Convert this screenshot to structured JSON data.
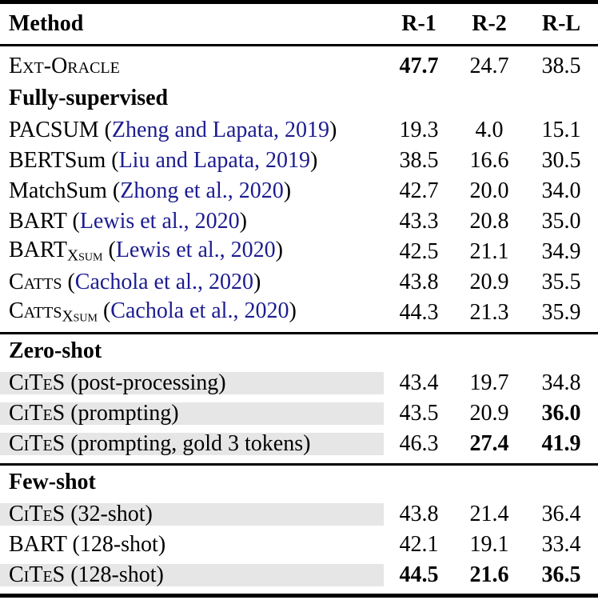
{
  "colors": {
    "citation_blue": "#1c1c90",
    "highlight_gray": "#e6e6e6",
    "rule_black": "#000000",
    "background": "#ffffff"
  },
  "table": {
    "header": {
      "method": "Method",
      "cols": [
        "R-1",
        "R-2",
        "R-L"
      ]
    },
    "blocks": [
      {
        "rows": [
          {
            "type": "data",
            "hl": false,
            "method": [
              {
                "t": "Ext-Oracle",
                "k": "sc"
              }
            ],
            "values": [
              "47.7",
              "24.7",
              "38.5"
            ],
            "bold": [
              true,
              false,
              false
            ]
          },
          {
            "type": "subheader",
            "title": "Fully-supervised"
          },
          {
            "type": "data",
            "hl": false,
            "method": [
              {
                "t": "PACSUM (",
                "k": "plain"
              },
              {
                "t": "Zheng and Lapata, 2019",
                "k": "cite"
              },
              {
                "t": ")",
                "k": "plain"
              }
            ],
            "values": [
              "19.3",
              "4.0",
              "15.1"
            ],
            "bold": [
              false,
              false,
              false
            ]
          },
          {
            "type": "data",
            "hl": false,
            "method": [
              {
                "t": "BERTSum (",
                "k": "plain"
              },
              {
                "t": "Liu and Lapata, 2019",
                "k": "cite"
              },
              {
                "t": ")",
                "k": "plain"
              }
            ],
            "values": [
              "38.5",
              "16.6",
              "30.5"
            ],
            "bold": [
              false,
              false,
              false
            ]
          },
          {
            "type": "data",
            "hl": false,
            "method": [
              {
                "t": "MatchSum (",
                "k": "plain"
              },
              {
                "t": "Zhong et al., 2020",
                "k": "cite"
              },
              {
                "t": ")",
                "k": "plain"
              }
            ],
            "values": [
              "42.7",
              "20.0",
              "34.0"
            ],
            "bold": [
              false,
              false,
              false
            ]
          },
          {
            "type": "data",
            "hl": false,
            "method": [
              {
                "t": "BART (",
                "k": "plain"
              },
              {
                "t": "Lewis et al., 2020",
                "k": "cite"
              },
              {
                "t": ")",
                "k": "plain"
              }
            ],
            "values": [
              "43.3",
              "20.8",
              "35.0"
            ],
            "bold": [
              false,
              false,
              false
            ]
          },
          {
            "type": "data",
            "hl": false,
            "method": [
              {
                "t": "BART",
                "k": "plain"
              },
              {
                "t": "Xsum",
                "k": "subsc"
              },
              {
                "t": " (",
                "k": "plain"
              },
              {
                "t": "Lewis et al., 2020",
                "k": "cite"
              },
              {
                "t": ")",
                "k": "plain"
              }
            ],
            "values": [
              "42.5",
              "21.1",
              "34.9"
            ],
            "bold": [
              false,
              false,
              false
            ]
          },
          {
            "type": "data",
            "hl": false,
            "method": [
              {
                "t": "Catts",
                "k": "sc"
              },
              {
                "t": " (",
                "k": "plain"
              },
              {
                "t": "Cachola et al., 2020",
                "k": "cite"
              },
              {
                "t": ")",
                "k": "plain"
              }
            ],
            "values": [
              "43.8",
              "20.9",
              "35.5"
            ],
            "bold": [
              false,
              false,
              false
            ]
          },
          {
            "type": "data",
            "hl": false,
            "method": [
              {
                "t": "Catts",
                "k": "sc"
              },
              {
                "t": "Xsum",
                "k": "subsc"
              },
              {
                "t": " (",
                "k": "plain"
              },
              {
                "t": "Cachola et al., 2020",
                "k": "cite"
              },
              {
                "t": ")",
                "k": "plain"
              }
            ],
            "values": [
              "44.3",
              "21.3",
              "35.9"
            ],
            "bold": [
              false,
              false,
              false
            ]
          }
        ]
      },
      {
        "rows": [
          {
            "type": "subheader",
            "title": "Zero-shot"
          },
          {
            "type": "data",
            "hl": true,
            "method": [
              {
                "t": "CiTeS",
                "k": "sc"
              },
              {
                "t": " (post-processing)",
                "k": "plain"
              }
            ],
            "values": [
              "43.4",
              "19.7",
              "34.8"
            ],
            "bold": [
              false,
              false,
              false
            ]
          },
          {
            "type": "data",
            "hl": true,
            "method": [
              {
                "t": "CiTeS",
                "k": "sc"
              },
              {
                "t": " (prompting)",
                "k": "plain"
              }
            ],
            "values": [
              "43.5",
              "20.9",
              "36.0"
            ],
            "bold": [
              false,
              false,
              true
            ]
          },
          {
            "type": "data",
            "hl": true,
            "method": [
              {
                "t": "CiTeS",
                "k": "sc"
              },
              {
                "t": " (prompting, gold 3 tokens)",
                "k": "plain"
              }
            ],
            "values": [
              "46.3",
              "27.4",
              "41.9"
            ],
            "bold": [
              false,
              true,
              true
            ]
          }
        ]
      },
      {
        "rows": [
          {
            "type": "subheader",
            "title": "Few-shot"
          },
          {
            "type": "data",
            "hl": true,
            "method": [
              {
                "t": "CiTeS",
                "k": "sc"
              },
              {
                "t": " (32-shot)",
                "k": "plain"
              }
            ],
            "values": [
              "43.8",
              "21.4",
              "36.4"
            ],
            "bold": [
              false,
              false,
              false
            ]
          },
          {
            "type": "data",
            "hl": false,
            "method": [
              {
                "t": "BART (128-shot)",
                "k": "plain"
              }
            ],
            "values": [
              "42.1",
              "19.1",
              "33.4"
            ],
            "bold": [
              false,
              false,
              false
            ]
          },
          {
            "type": "data",
            "hl": true,
            "method": [
              {
                "t": "CiTeS",
                "k": "sc"
              },
              {
                "t": " (128-shot)",
                "k": "plain"
              }
            ],
            "values": [
              "44.5",
              "21.6",
              "36.5"
            ],
            "bold": [
              true,
              true,
              true
            ]
          }
        ]
      }
    ]
  },
  "chart_data": {
    "type": "table",
    "columns": [
      "Method",
      "R-1",
      "R-2",
      "R-L"
    ],
    "rows": [
      [
        "Ext-Oracle",
        47.7,
        24.7,
        38.5
      ],
      [
        "PACSUM (Zheng and Lapata, 2019)",
        19.3,
        4.0,
        15.1
      ],
      [
        "BERTSum (Liu and Lapata, 2019)",
        38.5,
        16.6,
        30.5
      ],
      [
        "MatchSum (Zhong et al., 2020)",
        42.7,
        20.0,
        34.0
      ],
      [
        "BART (Lewis et al., 2020)",
        43.3,
        20.8,
        35.0
      ],
      [
        "BART-XSUM (Lewis et al., 2020)",
        42.5,
        21.1,
        34.9
      ],
      [
        "CATTS (Cachola et al., 2020)",
        43.8,
        20.9,
        35.5
      ],
      [
        "CATTS-XSUM (Cachola et al., 2020)",
        44.3,
        21.3,
        35.9
      ],
      [
        "CITES (post-processing)",
        43.4,
        19.7,
        34.8
      ],
      [
        "CITES (prompting)",
        43.5,
        20.9,
        36.0
      ],
      [
        "CITES (prompting, gold 3 tokens)",
        46.3,
        27.4,
        41.9
      ],
      [
        "CITES (32-shot)",
        43.8,
        21.4,
        36.4
      ],
      [
        "BART (128-shot)",
        42.1,
        19.1,
        33.4
      ],
      [
        "CITES (128-shot)",
        44.5,
        21.6,
        36.5
      ]
    ],
    "section_labels": [
      "Fully-supervised",
      "Zero-shot",
      "Few-shot"
    ],
    "bold_cells_note": "bold flags stored per-row in table.blocks"
  }
}
